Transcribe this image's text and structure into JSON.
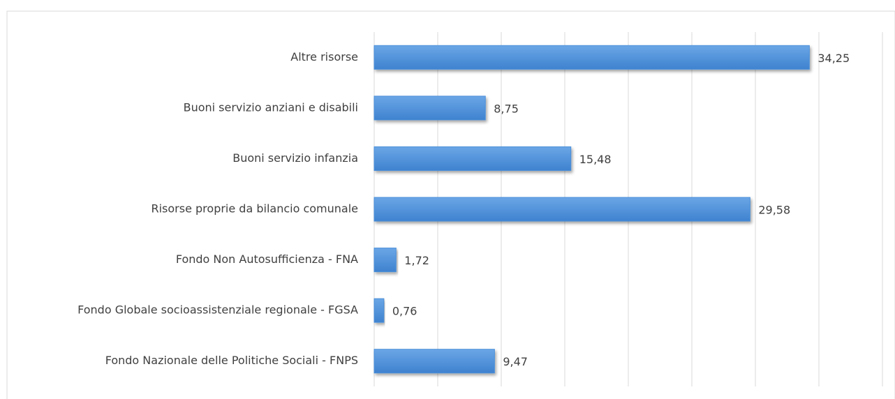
{
  "chart_data": {
    "type": "barh",
    "categories": [
      "Altre risorse",
      "Buoni servizio anziani e disabili",
      "Buoni servizio infanzia",
      "Risorse proprie da bilancio comunale",
      "Fondo Non Autosufficienza - FNA",
      "Fondo Globale socioassistenziale regionale - FGSA",
      "Fondo Nazionale delle Politiche Sociali - FNPS"
    ],
    "values": [
      34.25,
      8.75,
      15.48,
      29.58,
      1.72,
      0.76,
      9.47
    ],
    "value_labels": [
      "34,25",
      "8,75",
      "15,48",
      "29,58",
      "1,72",
      "0,76",
      "9,47"
    ],
    "color": "#4a8fd9",
    "xlim": [
      0,
      40
    ],
    "xticks": [
      0,
      5,
      10,
      15,
      20,
      25,
      30,
      35,
      40
    ],
    "grid": true
  }
}
